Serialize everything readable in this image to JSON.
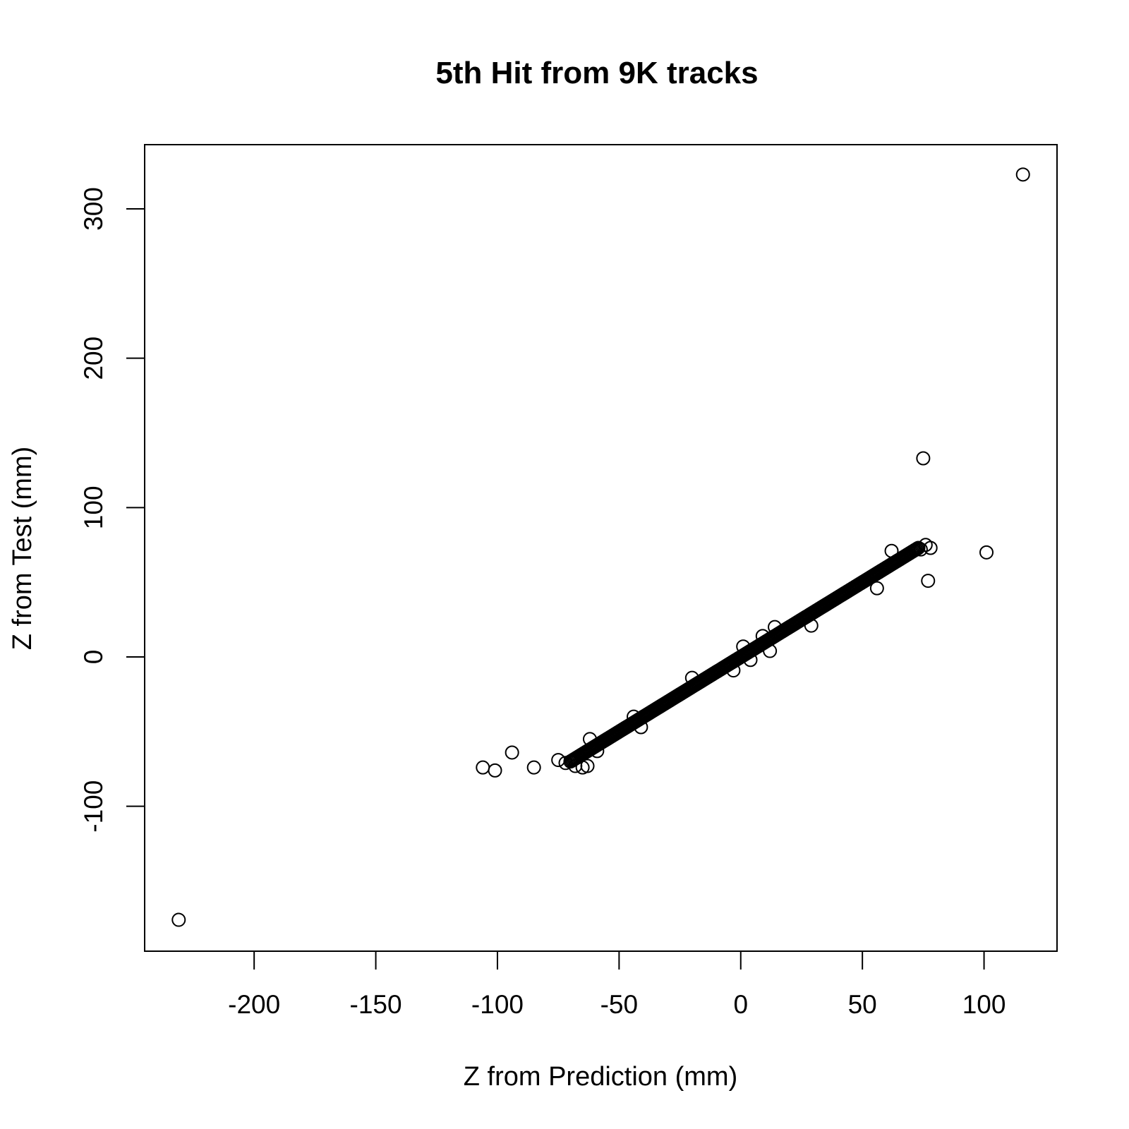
{
  "chart_data": {
    "type": "scatter",
    "title": "5th Hit from 9K tracks",
    "xlabel": "Z from Prediction (mm)",
    "ylabel": "Z from Test (mm)",
    "xlim": [
      -245,
      130
    ],
    "ylim": [
      -197,
      343
    ],
    "xticks": [
      -200,
      -150,
      -100,
      -50,
      0,
      50,
      100
    ],
    "xtick_labels": [
      "-200",
      "-150",
      "-100",
      "-50",
      "0",
      "50",
      "100"
    ],
    "yticks": [
      -100,
      0,
      100,
      200,
      300
    ],
    "ytick_labels": [
      "-100",
      "0",
      "100",
      "200",
      "300"
    ],
    "grid": false,
    "marker": "open-circle",
    "trend_band": {
      "x_start": -70,
      "x_end": 73,
      "slope": 1.0,
      "intercept": 0,
      "step": 0.5
    },
    "points": [
      {
        "x": -231,
        "y": -176
      },
      {
        "x": 116,
        "y": 323
      },
      {
        "x": 75,
        "y": 133
      },
      {
        "x": 101,
        "y": 70
      },
      {
        "x": 77,
        "y": 51
      },
      {
        "x": 78,
        "y": 73
      },
      {
        "x": 76,
        "y": 75
      },
      {
        "x": 74,
        "y": 72
      },
      {
        "x": 62,
        "y": 71
      },
      {
        "x": 56,
        "y": 46
      },
      {
        "x": 29,
        "y": 21
      },
      {
        "x": 14,
        "y": 20
      },
      {
        "x": 12,
        "y": 4
      },
      {
        "x": 9,
        "y": 14
      },
      {
        "x": 4,
        "y": -2
      },
      {
        "x": 1,
        "y": 7
      },
      {
        "x": -3,
        "y": -9
      },
      {
        "x": -20,
        "y": -14
      },
      {
        "x": -41,
        "y": -47
      },
      {
        "x": -44,
        "y": -40
      },
      {
        "x": -59,
        "y": -63
      },
      {
        "x": -62,
        "y": -55
      },
      {
        "x": -63,
        "y": -73
      },
      {
        "x": -65,
        "y": -74
      },
      {
        "x": -68,
        "y": -73
      },
      {
        "x": -72,
        "y": -71
      },
      {
        "x": -75,
        "y": -69
      },
      {
        "x": -85,
        "y": -74
      },
      {
        "x": -94,
        "y": -64
      },
      {
        "x": -101,
        "y": -76
      },
      {
        "x": -106,
        "y": -74
      }
    ]
  }
}
